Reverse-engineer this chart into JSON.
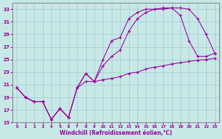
{
  "xlabel": "Windchill (Refroidissement éolien,°C)",
  "xlim": [
    -0.5,
    23.5
  ],
  "ylim": [
    15,
    34
  ],
  "yticks": [
    15,
    17,
    19,
    21,
    23,
    25,
    27,
    29,
    31,
    33
  ],
  "xticks": [
    0,
    1,
    2,
    3,
    4,
    5,
    6,
    7,
    8,
    9,
    10,
    11,
    12,
    13,
    14,
    15,
    16,
    17,
    18,
    19,
    20,
    21,
    22,
    23
  ],
  "bg_color": "#c8e8e8",
  "line_color": "#990099",
  "series1_x": [
    0,
    1,
    2,
    3,
    4,
    5,
    6,
    7,
    8,
    9,
    10,
    11,
    12,
    13,
    14,
    15,
    16,
    17,
    18,
    19,
    20,
    21,
    22,
    23
  ],
  "series1_y": [
    20.5,
    19.0,
    18.3,
    18.3,
    15.5,
    17.2,
    15.8,
    20.5,
    22.8,
    21.5,
    25.0,
    28.0,
    28.5,
    31.5,
    32.5,
    33.0,
    33.0,
    33.2,
    33.2,
    33.2,
    33.0,
    31.5,
    29.0,
    26.0
  ],
  "series2_x": [
    0,
    1,
    2,
    3,
    4,
    5,
    6,
    7,
    8,
    9,
    10,
    11,
    12,
    13,
    14,
    15,
    16,
    17,
    18,
    19,
    20,
    21,
    22,
    23
  ],
  "series2_y": [
    20.5,
    19.0,
    18.3,
    18.3,
    15.5,
    17.2,
    15.8,
    20.5,
    22.8,
    21.5,
    24.0,
    25.5,
    26.5,
    29.5,
    31.5,
    32.5,
    33.0,
    33.0,
    33.2,
    32.0,
    28.0,
    25.5,
    25.5,
    26.0
  ],
  "series3_x": [
    0,
    1,
    2,
    3,
    4,
    5,
    6,
    7,
    8,
    9,
    10,
    11,
    12,
    13,
    14,
    15,
    16,
    17,
    18,
    19,
    20,
    21,
    22,
    23
  ],
  "series3_y": [
    20.5,
    19.0,
    18.3,
    18.3,
    15.5,
    17.2,
    15.8,
    20.5,
    21.5,
    21.5,
    21.8,
    22.0,
    22.3,
    22.8,
    23.0,
    23.5,
    23.8,
    24.0,
    24.3,
    24.5,
    24.7,
    24.9,
    25.0,
    25.2
  ]
}
